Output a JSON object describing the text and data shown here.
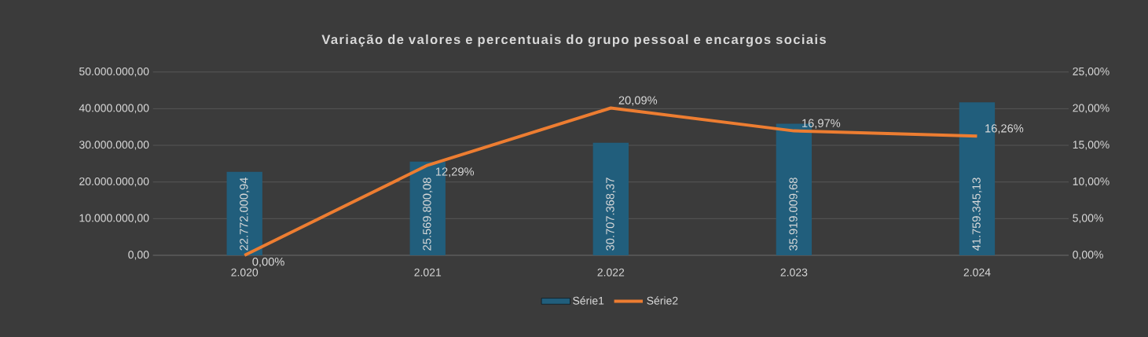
{
  "chart_data": {
    "type": "bar",
    "title": "Variação de valores e percentuais do grupo pessoal e encargos sociais",
    "categories": [
      "2.020",
      "2.021",
      "2.022",
      "2.023",
      "2.024"
    ],
    "series": [
      {
        "name": "Série1",
        "color": "#215e7c",
        "values": [
          22772000.94,
          25569800.08,
          30707368.37,
          35919009.68,
          41759345.13
        ],
        "value_labels": [
          "22.772.000,94",
          "25.569.800,08",
          "30.707.368,37",
          "35.919.009,68",
          "41.759.345,13"
        ]
      },
      {
        "name": "Série2",
        "type": "line",
        "axis": "y2",
        "color": "#ed7d31",
        "values": [
          0,
          12.29,
          20.09,
          16.97,
          16.26
        ],
        "value_labels": [
          "0,00%",
          "12,29%",
          "20,09%",
          "16,97%",
          "16,26%"
        ]
      }
    ],
    "ylim": [
      0,
      50000000
    ],
    "yticks": [
      {
        "value": 0,
        "label": "0,00"
      },
      {
        "value": 10000000,
        "label": "10.000.000,00"
      },
      {
        "value": 20000000,
        "label": "20.000.000,00"
      },
      {
        "value": 30000000,
        "label": "30.000.000,00"
      },
      {
        "value": 40000000,
        "label": "40.000.000,00"
      },
      {
        "value": 50000000,
        "label": "50.000.000,00"
      }
    ],
    "y2lim": [
      0,
      25
    ],
    "y2ticks": [
      {
        "value": 0,
        "label": "0,00%"
      },
      {
        "value": 5,
        "label": "5,00%"
      },
      {
        "value": 10,
        "label": "10,00%"
      },
      {
        "value": 15,
        "label": "15,00%"
      },
      {
        "value": 20,
        "label": "20,00%"
      },
      {
        "value": 25,
        "label": "25,00%"
      }
    ],
    "grid": "y",
    "legend": "bottom"
  }
}
